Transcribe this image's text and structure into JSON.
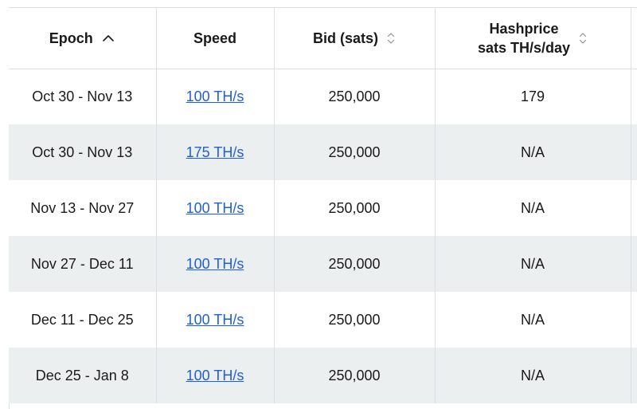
{
  "columns": {
    "epoch": {
      "label": "Epoch",
      "sort": "ascending"
    },
    "speed": {
      "label": "Speed"
    },
    "bid": {
      "label": "Bid (sats)",
      "sort": "none"
    },
    "hashprice": {
      "label_line1": "Hashprice",
      "label_line2": "sats TH/s/day",
      "sort": "none"
    }
  },
  "icons": {
    "epoch_sort": "chevron-up-icon",
    "bid_sort": "sort-arrows-icon",
    "hashprice_sort": "sort-arrows-icon"
  },
  "colors": {
    "link": "#1f5fd6",
    "stripe": "#eceff0",
    "border": "#dcdfe3"
  },
  "rows": [
    {
      "epoch": "Oct 30 - Nov 13",
      "speed": "100 TH/s",
      "bid": "250,000",
      "hashprice": "179"
    },
    {
      "epoch": "Oct 30 - Nov 13",
      "speed": "175 TH/s",
      "bid": "250,000",
      "hashprice": "N/A"
    },
    {
      "epoch": "Nov 13 - Nov 27",
      "speed": "100 TH/s",
      "bid": "250,000",
      "hashprice": "N/A"
    },
    {
      "epoch": "Nov 27 - Dec 11",
      "speed": "100 TH/s",
      "bid": "250,000",
      "hashprice": "N/A"
    },
    {
      "epoch": "Dec 11 - Dec 25",
      "speed": "100 TH/s",
      "bid": "250,000",
      "hashprice": "N/A"
    },
    {
      "epoch": "Dec 25 - Jan 8",
      "speed": "100 TH/s",
      "bid": "250,000",
      "hashprice": "N/A"
    }
  ]
}
